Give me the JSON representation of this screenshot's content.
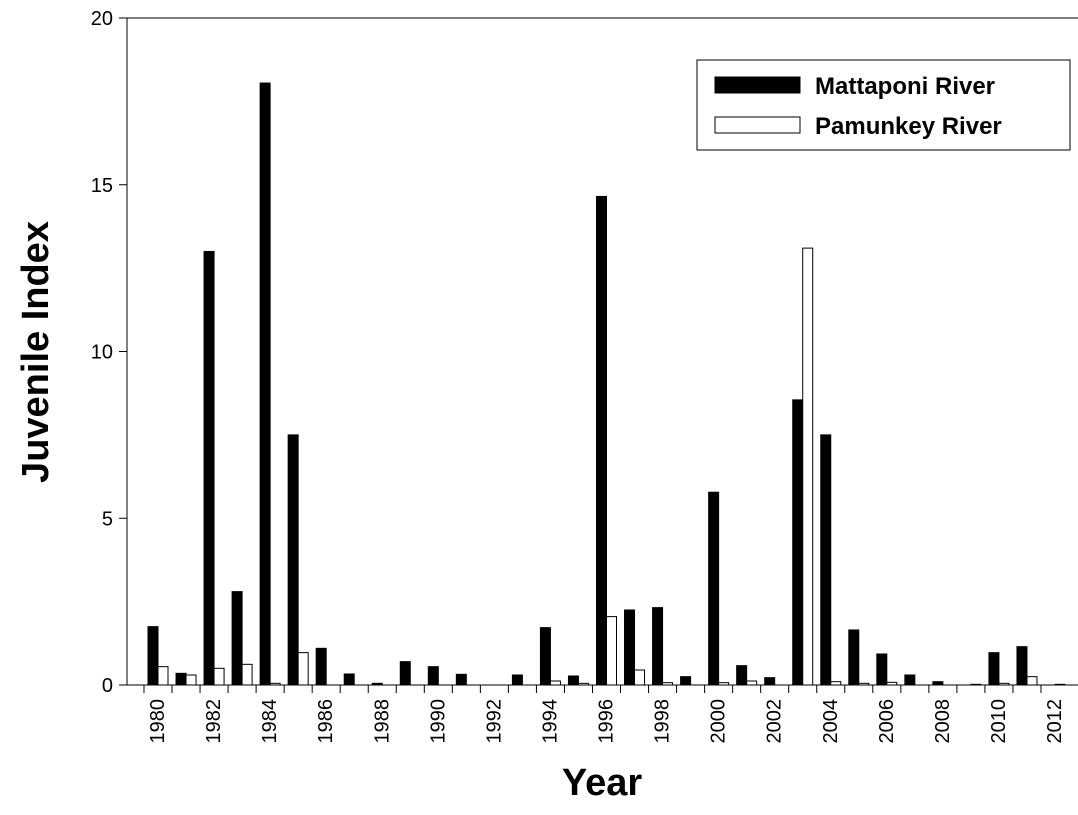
{
  "chart_data": {
    "type": "bar",
    "x_label": "Year",
    "y_label": "Juvenile Index",
    "categories": [
      "1980",
      null,
      "1982",
      null,
      "1984",
      null,
      "1986",
      null,
      "1988",
      null,
      "1990",
      null,
      "1992",
      null,
      "1994",
      null,
      "1996",
      null,
      "1998",
      null,
      "2000",
      null,
      "2002",
      null,
      "2004",
      null,
      "2006",
      null,
      "2008",
      null,
      "2010",
      null,
      "2012"
    ],
    "series": [
      {
        "name": "Mattaponi River",
        "color": "#000000",
        "values": [
          1.75,
          0.35,
          13.0,
          2.8,
          18.05,
          7.5,
          1.1,
          0.33,
          0.05,
          0.7,
          0.55,
          0.32,
          0.0,
          0.3,
          1.72,
          0.27,
          14.65,
          2.25,
          2.32,
          0.25,
          5.78,
          0.58,
          0.22,
          8.55,
          7.5,
          1.65,
          0.93,
          0.3,
          0.1,
          0.0,
          0.97,
          1.15,
          0.0
        ]
      },
      {
        "name": "Pamunkey River",
        "color": "#ffffff",
        "values": [
          0.55,
          0.3,
          0.5,
          0.62,
          0.05,
          0.97,
          0.0,
          0.0,
          0.0,
          0.0,
          0.0,
          0.0,
          0.0,
          0.0,
          0.12,
          0.05,
          2.05,
          0.45,
          0.07,
          0.0,
          0.07,
          0.12,
          0.0,
          13.1,
          0.1,
          0.05,
          0.08,
          0.0,
          0.0,
          0.02,
          0.05,
          0.25,
          0.02
        ]
      }
    ],
    "ylim": [
      0,
      20
    ],
    "yticks": [
      0,
      5,
      10,
      15,
      20
    ],
    "legend": "top-right",
    "grid": false
  }
}
